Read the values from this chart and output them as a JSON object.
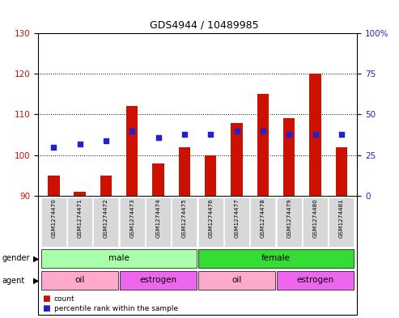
{
  "title": "GDS4944 / 10489985",
  "samples": [
    "GSM1274470",
    "GSM1274471",
    "GSM1274472",
    "GSM1274473",
    "GSM1274474",
    "GSM1274475",
    "GSM1274476",
    "GSM1274477",
    "GSM1274478",
    "GSM1274479",
    "GSM1274480",
    "GSM1274481"
  ],
  "count_values": [
    95,
    91,
    95,
    112,
    98,
    102,
    100,
    108,
    115,
    109,
    120,
    102
  ],
  "percentile_values": [
    30,
    32,
    34,
    40,
    36,
    38,
    38,
    40,
    40,
    38,
    38,
    38
  ],
  "ylim_left": [
    90,
    130
  ],
  "ylim_right": [
    0,
    100
  ],
  "yticks_left": [
    90,
    100,
    110,
    120,
    130
  ],
  "yticks_right": [
    0,
    25,
    50,
    75,
    100
  ],
  "gender_groups": [
    {
      "label": "male",
      "start": 0,
      "end": 5,
      "color": "#AAFFAA"
    },
    {
      "label": "female",
      "start": 6,
      "end": 11,
      "color": "#33DD33"
    }
  ],
  "agent_groups": [
    {
      "label": "oil",
      "start": 0,
      "end": 2,
      "color": "#FFAACC"
    },
    {
      "label": "estrogen",
      "start": 3,
      "end": 5,
      "color": "#EE66EE"
    },
    {
      "label": "oil",
      "start": 6,
      "end": 8,
      "color": "#FFAACC"
    },
    {
      "label": "estrogen",
      "start": 9,
      "end": 11,
      "color": "#EE66EE"
    }
  ],
  "bar_color": "#CC1100",
  "dot_color": "#2222CC",
  "bar_bottom": 90,
  "plot_bg_color": "#ffffff",
  "axis_label_color_left": "#CC1100",
  "axis_label_color_right": "#2222CC",
  "label_box_color": "#D8D8D8",
  "right_tick_labels": [
    "0",
    "25",
    "50",
    "75",
    "100%"
  ]
}
